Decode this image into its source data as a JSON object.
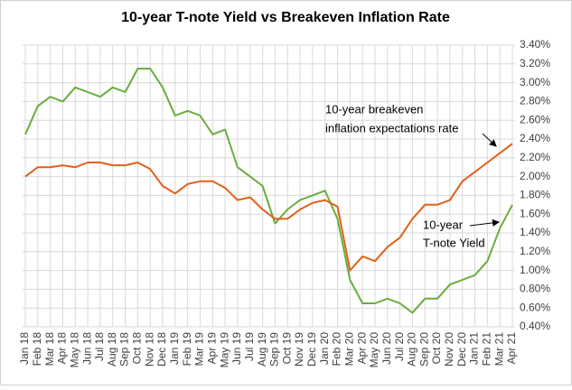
{
  "chart_data": {
    "type": "line",
    "title": "10-year T-note Yield vs Breakeven Inflation Rate",
    "categories": [
      "Jan 18",
      "Feb 18",
      "Mar 18",
      "Apr 18",
      "May 18",
      "Jun 18",
      "Jul 18",
      "Aug 18",
      "Sep 18",
      "Oct 18",
      "Nov 18",
      "Dec 18",
      "Jan 19",
      "Feb 19",
      "Mar 19",
      "Apr 19",
      "May 19",
      "Jun 19",
      "Jul 19",
      "Aug 19",
      "Sep 19",
      "Oct 19",
      "Nov 19",
      "Dec 19",
      "Jan 20",
      "Feb 20",
      "Mar 20",
      "Apr 20",
      "May 20",
      "Jun 20",
      "Jul 20",
      "Aug 20",
      "Sep 20",
      "Oct 20",
      "Nov 20",
      "Dec 20",
      "Jan 21",
      "Feb 21",
      "Mar 21",
      "Apr 21"
    ],
    "series": [
      {
        "name": "10-year T-note Yield",
        "color": "#6aad3d",
        "values": [
          2.45,
          2.75,
          2.85,
          2.8,
          2.95,
          2.9,
          2.85,
          2.95,
          2.9,
          3.15,
          3.15,
          2.95,
          2.65,
          2.7,
          2.65,
          2.45,
          2.5,
          2.1,
          2.0,
          1.9,
          1.5,
          1.65,
          1.75,
          1.8,
          1.85,
          1.55,
          0.9,
          0.65,
          0.65,
          0.7,
          0.65,
          0.55,
          0.7,
          0.7,
          0.85,
          0.9,
          0.95,
          1.1,
          1.45,
          1.7
        ]
      },
      {
        "name": "10-year breakeven inflation expectations rate",
        "color": "#e0601b",
        "values": [
          2.0,
          2.1,
          2.1,
          2.12,
          2.1,
          2.15,
          2.15,
          2.12,
          2.12,
          2.15,
          2.08,
          1.9,
          1.82,
          1.92,
          1.95,
          1.95,
          1.88,
          1.75,
          1.78,
          1.65,
          1.55,
          1.55,
          1.65,
          1.72,
          1.75,
          1.68,
          1.0,
          1.15,
          1.1,
          1.25,
          1.35,
          1.55,
          1.7,
          1.7,
          1.75,
          1.95,
          2.05,
          2.15,
          2.25,
          2.35
        ]
      }
    ],
    "annotations": [
      {
        "lines": [
          "10-year breakeven",
          "inflation expectations rate"
        ]
      },
      {
        "lines": [
          "10-year",
          "T-note Yield"
        ]
      }
    ],
    "ylim": [
      0.4,
      3.4
    ],
    "yticks": [
      {
        "value": 0.4,
        "label": "0.40%"
      },
      {
        "value": 0.6,
        "label": "0.60%"
      },
      {
        "value": 0.8,
        "label": "0.80%"
      },
      {
        "value": 1.0,
        "label": "1.00%"
      },
      {
        "value": 1.2,
        "label": "1.20%"
      },
      {
        "value": 1.4,
        "label": "1.40%"
      },
      {
        "value": 1.6,
        "label": "1.60%"
      },
      {
        "value": 1.8,
        "label": "1.80%"
      },
      {
        "value": 2.0,
        "label": "2.00%"
      },
      {
        "value": 2.2,
        "label": "2.20%"
      },
      {
        "value": 2.4,
        "label": "2.40%"
      },
      {
        "value": 2.6,
        "label": "2.60%"
      },
      {
        "value": 2.8,
        "label": "2.80%"
      },
      {
        "value": 3.0,
        "label": "3.00%"
      },
      {
        "value": 3.2,
        "label": "3.20%"
      },
      {
        "value": 3.4,
        "label": "3.40%"
      }
    ],
    "grid": true
  }
}
